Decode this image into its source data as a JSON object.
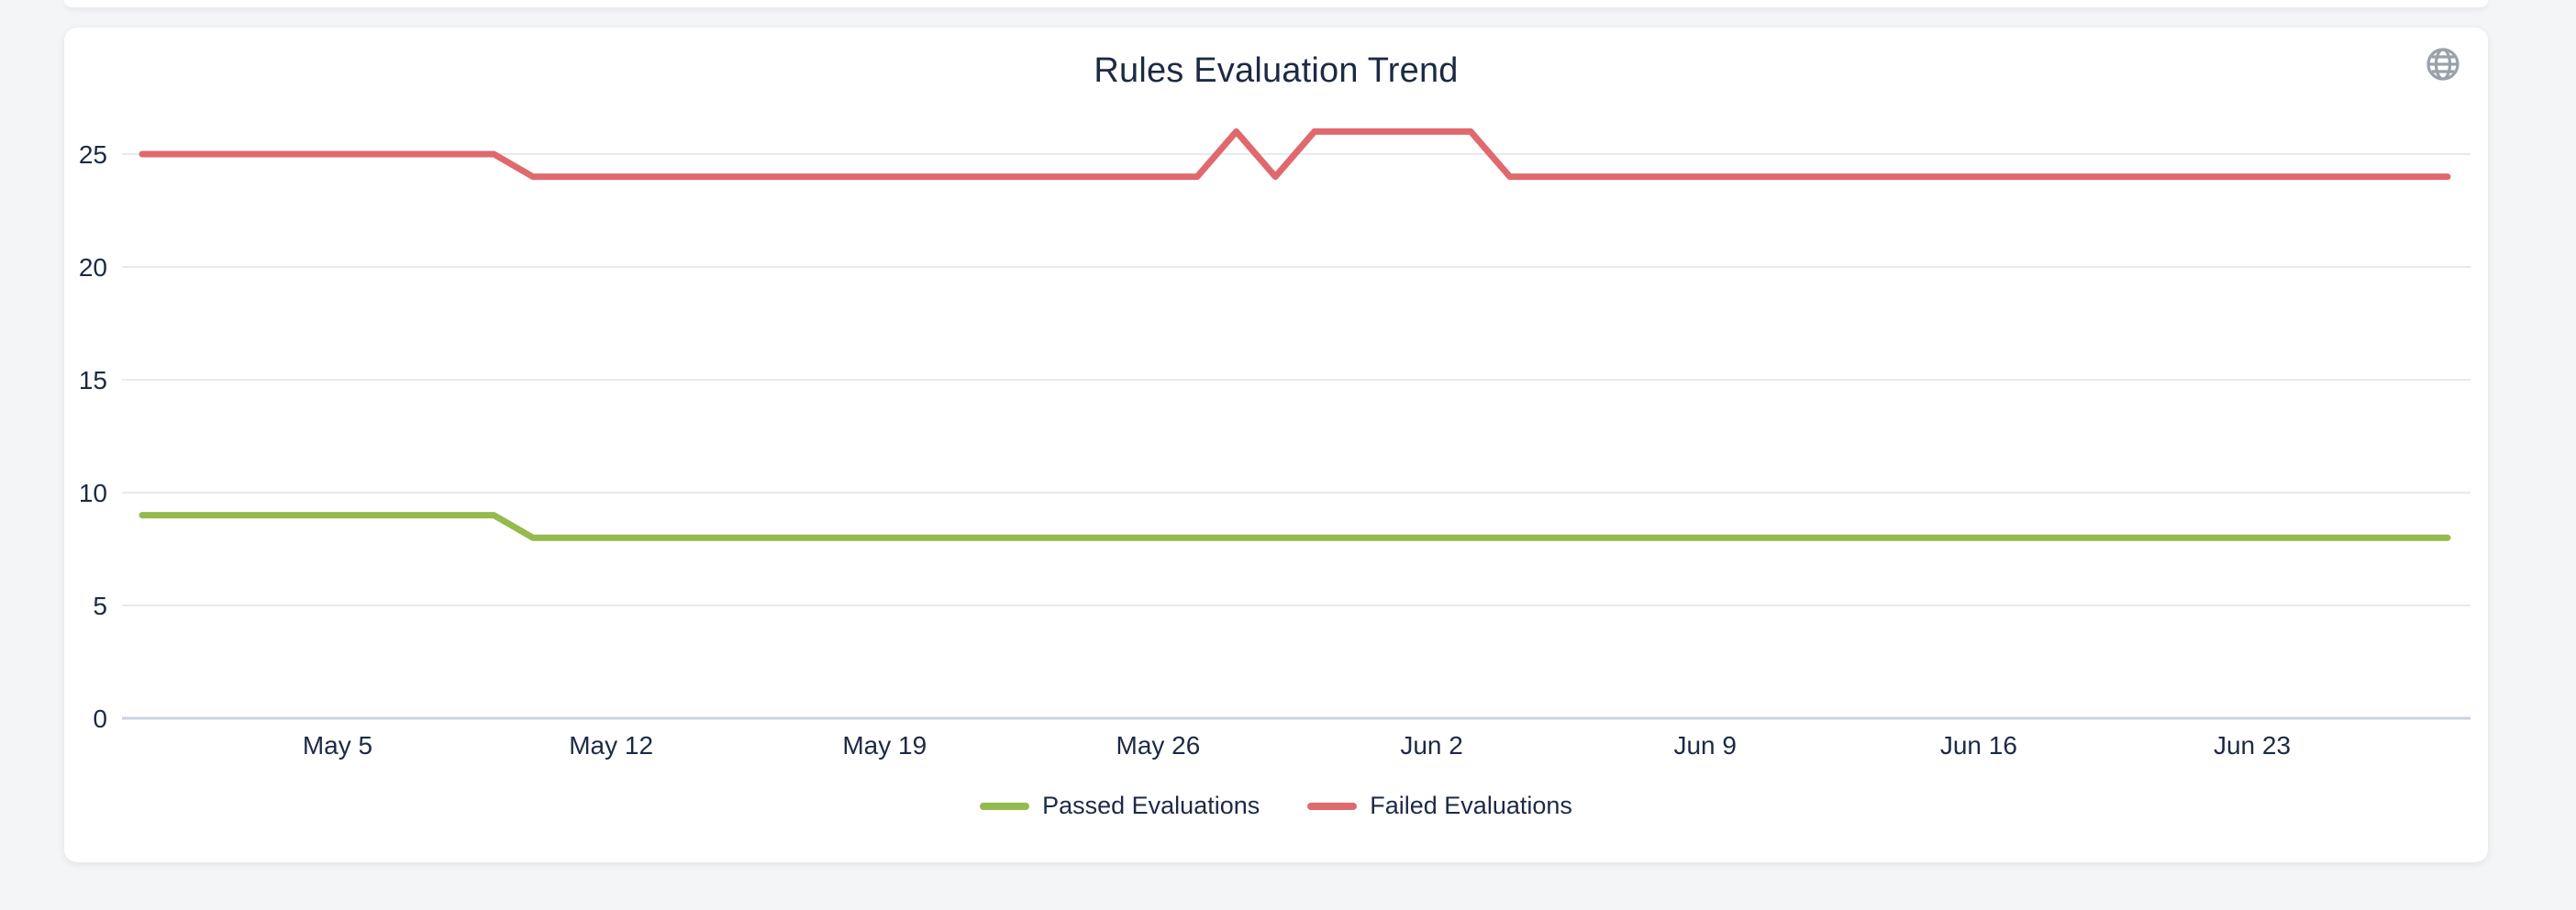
{
  "page": {
    "background": "#f4f5f7"
  },
  "card": {
    "background": "#ffffff"
  },
  "colors": {
    "grid_line": "#e9eaee",
    "axis_line": "#c9d2e2",
    "text": "#1d2a44",
    "icon": "#9aa1ab"
  },
  "chart_data": {
    "type": "line",
    "title": "Rules Evaluation Trend",
    "xlabel": "",
    "ylabel": "",
    "ylim": [
      0,
      27
    ],
    "yticks": [
      0,
      5,
      10,
      15,
      20,
      25
    ],
    "grid": true,
    "legend_position": "bottom",
    "x": [
      "Apr 30",
      "May 1",
      "May 2",
      "May 3",
      "May 4",
      "May 5",
      "May 6",
      "May 7",
      "May 8",
      "May 9",
      "May 10",
      "May 11",
      "May 12",
      "May 13",
      "May 14",
      "May 15",
      "May 16",
      "May 17",
      "May 18",
      "May 19",
      "May 20",
      "May 21",
      "May 22",
      "May 23",
      "May 24",
      "May 25",
      "May 26",
      "May 27",
      "May 28",
      "May 29",
      "May 30",
      "May 31",
      "Jun 1",
      "Jun 2",
      "Jun 3",
      "Jun 4",
      "Jun 5",
      "Jun 6",
      "Jun 7",
      "Jun 8",
      "Jun 9",
      "Jun 10",
      "Jun 11",
      "Jun 12",
      "Jun 13",
      "Jun 14",
      "Jun 15",
      "Jun 16",
      "Jun 17",
      "Jun 18",
      "Jun 19",
      "Jun 20",
      "Jun 21",
      "Jun 22",
      "Jun 23",
      "Jun 24",
      "Jun 25",
      "Jun 26",
      "Jun 27",
      "Jun 28"
    ],
    "xticks": {
      "labels": [
        "May 5",
        "May 12",
        "May 19",
        "May 26",
        "Jun 2",
        "Jun 9",
        "Jun 16",
        "Jun 23"
      ],
      "x_indices": [
        5,
        12,
        19,
        26,
        33,
        40,
        47,
        54
      ]
    },
    "series": [
      {
        "name": "Passed Evaluations",
        "color": "#95ba4d",
        "values": [
          9,
          9,
          9,
          9,
          9,
          9,
          9,
          9,
          9,
          9,
          8,
          8,
          8,
          8,
          8,
          8,
          8,
          8,
          8,
          8,
          8,
          8,
          8,
          8,
          8,
          8,
          8,
          8,
          8,
          8,
          8,
          8,
          8,
          8,
          8,
          8,
          8,
          8,
          8,
          8,
          8,
          8,
          8,
          8,
          8,
          8,
          8,
          8,
          8,
          8,
          8,
          8,
          8,
          8,
          8,
          8,
          8,
          8,
          8,
          8
        ]
      },
      {
        "name": "Failed Evaluations",
        "color": "#e0696e",
        "values": [
          25,
          25,
          25,
          25,
          25,
          25,
          25,
          25,
          25,
          25,
          24,
          24,
          24,
          24,
          24,
          24,
          24,
          24,
          24,
          24,
          24,
          24,
          24,
          24,
          24,
          24,
          24,
          24,
          26,
          24,
          26,
          26,
          26,
          26,
          26,
          24,
          24,
          24,
          24,
          24,
          24,
          24,
          24,
          24,
          24,
          24,
          24,
          24,
          24,
          24,
          24,
          24,
          24,
          24,
          24,
          24,
          24,
          24,
          24,
          24
        ]
      }
    ]
  }
}
